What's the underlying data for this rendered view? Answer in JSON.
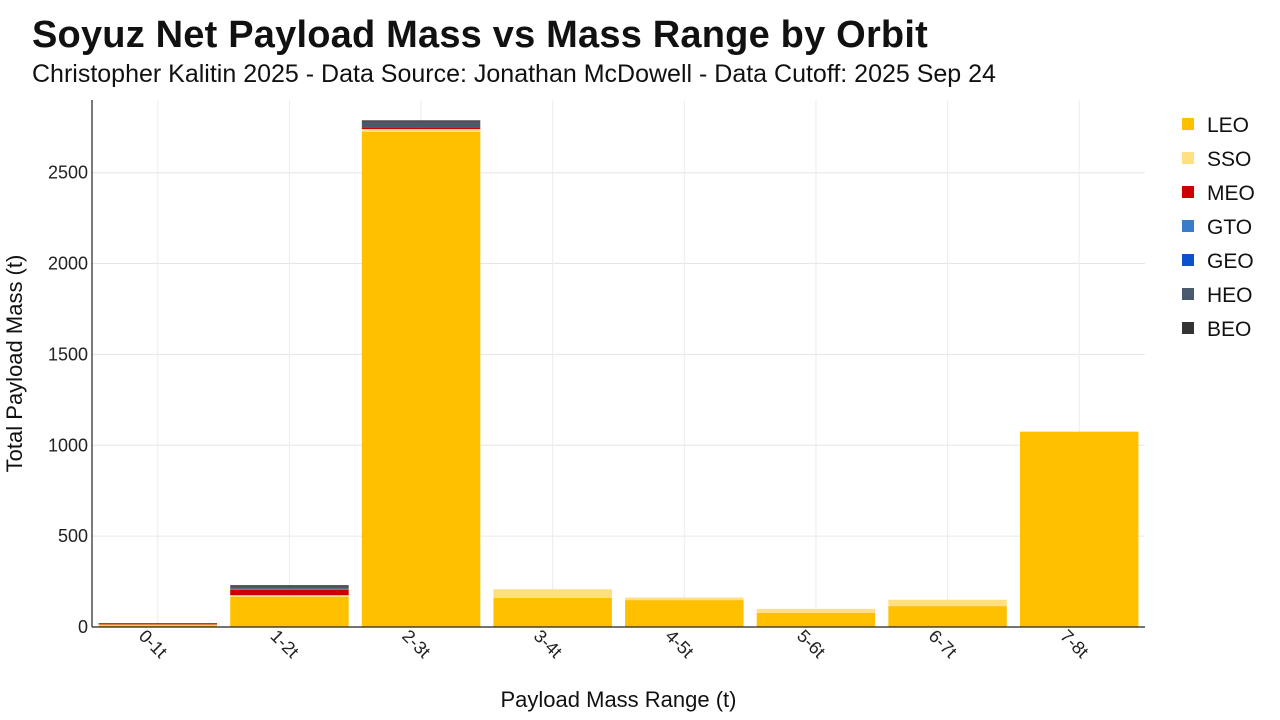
{
  "chart_data": {
    "type": "bar",
    "stacked": true,
    "title": "Soyuz Net Payload Mass vs Mass Range by Orbit",
    "subtitle": "Christopher Kalitin 2025 - Data Source: Jonathan McDowell - Data Cutoff: 2025 Sep 24",
    "xlabel": "Payload Mass Range (t)",
    "ylabel": "Total Payload Mass (t)",
    "categories": [
      "0-1t",
      "1-2t",
      "2-3t",
      "3-4t",
      "4-5t",
      "5-6t",
      "6-7t",
      "7-8t"
    ],
    "ylim": [
      0,
      2900
    ],
    "yticks": [
      0,
      500,
      1000,
      1500,
      2000,
      2500
    ],
    "grid": true,
    "legend_position": "right",
    "series": [
      {
        "name": "LEO",
        "color": "#FFC000",
        "values": [
          8,
          165,
          2725,
          160,
          148,
          78,
          115,
          1075
        ]
      },
      {
        "name": "SSO",
        "color": "#FFDF80",
        "values": [
          6,
          10,
          15,
          48,
          14,
          22,
          35,
          0
        ]
      },
      {
        "name": "MEO",
        "color": "#CC0000",
        "values": [
          7,
          30,
          10,
          0,
          0,
          0,
          0,
          0
        ]
      },
      {
        "name": "GTO",
        "color": "#3A7CC9",
        "values": [
          0,
          5,
          0,
          0,
          0,
          0,
          0,
          0
        ]
      },
      {
        "name": "GEO",
        "color": "#0B50CC",
        "values": [
          0,
          0,
          0,
          0,
          0,
          0,
          0,
          0
        ]
      },
      {
        "name": "HEO",
        "color": "#4A5A6E",
        "values": [
          0,
          12,
          30,
          0,
          0,
          0,
          0,
          0
        ]
      },
      {
        "name": "BEO",
        "color": "#333333",
        "values": [
          0,
          8,
          8,
          0,
          0,
          0,
          0,
          0
        ]
      }
    ]
  }
}
